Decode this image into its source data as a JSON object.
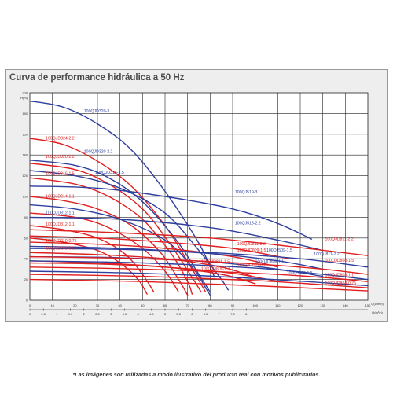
{
  "page": {
    "title": "Curva de performance hidráulica a 50 Hz",
    "disclaimer": "*Las imágenes son utilizadas a modo ilustrativo del producto real con motivos publicitarios."
  },
  "colors": {
    "blue": "#2e3f9e",
    "red": "#e02020",
    "grid": "#222222",
    "bg": "#eeeeee"
  },
  "chart_data": {
    "type": "line",
    "title": "Curva de performance hidráulica a 50 Hz",
    "ylabel": "H(m)",
    "xlabel": "Q(L/min)",
    "x2label": "Q(m³/h)",
    "xlim": [
      0,
      150
    ],
    "ylim": [
      0,
      200
    ],
    "x_ticks": [
      0,
      10,
      20,
      30,
      40,
      50,
      60,
      70,
      80,
      90,
      100,
      110,
      120,
      130,
      140,
      150
    ],
    "x_tick_labels": [
      "0",
      "10",
      "20",
      "30",
      "40",
      "50",
      "60",
      "70",
      "80",
      "90",
      "100",
      "110",
      "120",
      "130",
      "140",
      "150"
    ],
    "x2_ticks": [
      0,
      6,
      12,
      18,
      24,
      30,
      36,
      42,
      48,
      54,
      60,
      66,
      72,
      78,
      84,
      90,
      96
    ],
    "x2_tick_labels": [
      "0",
      "0.5",
      "1",
      "1.5",
      "2",
      "2.5",
      "3",
      "3.5",
      "4",
      "4.5",
      "5",
      "5.5",
      "6",
      "6.5",
      "7",
      "7.5",
      "8"
    ],
    "y_ticks": [
      0,
      20,
      40,
      60,
      80,
      100,
      120,
      140,
      160,
      180,
      200
    ],
    "y_tick_labels": [
      "0",
      "20",
      "40",
      "60",
      "80",
      "100",
      "120",
      "140",
      "160",
      "180",
      "200"
    ],
    "grid": true,
    "series": [
      {
        "name": "100QJD320-3",
        "color": "blue",
        "label_at": [
          24,
          181
        ],
        "points": [
          [
            0,
            192
          ],
          [
            15,
            186
          ],
          [
            30,
            170
          ],
          [
            45,
            145
          ],
          [
            60,
            105
          ],
          [
            75,
            55
          ],
          [
            82,
            22
          ]
        ]
      },
      {
        "name": "100QJD324-2.2",
        "color": "red",
        "label_at": [
          7,
          155
        ],
        "points": [
          [
            0,
            156
          ],
          [
            15,
            150
          ],
          [
            30,
            134
          ],
          [
            45,
            110
          ],
          [
            60,
            72
          ],
          [
            72,
            30
          ],
          [
            78,
            8
          ]
        ]
      },
      {
        "name": "100QJD320-2.2",
        "color": "blue",
        "label_at": [
          24,
          142
        ],
        "points": [
          [
            0,
            135
          ],
          [
            20,
            130
          ],
          [
            35,
            118
          ],
          [
            50,
            95
          ],
          [
            65,
            58
          ],
          [
            75,
            25
          ],
          [
            80,
            8
          ]
        ]
      },
      {
        "name": "100QJD320-2.2",
        "color": "red",
        "label_at": [
          7,
          137
        ],
        "points": [
          [
            0,
            132
          ],
          [
            20,
            126
          ],
          [
            35,
            112
          ],
          [
            50,
            88
          ],
          [
            62,
            55
          ],
          [
            72,
            22
          ],
          [
            76,
            8
          ]
        ]
      },
      {
        "name": "100QJD316-1.5",
        "color": "blue",
        "label_at": [
          29,
          122
        ],
        "points": [
          [
            0,
            125
          ],
          [
            20,
            120
          ],
          [
            40,
            108
          ],
          [
            60,
            84
          ],
          [
            75,
            48
          ],
          [
            85,
            20
          ],
          [
            88,
            10
          ]
        ]
      },
      {
        "name": "100QJD316-1.5",
        "color": "red",
        "label_at": [
          7,
          121
        ],
        "points": [
          [
            0,
            118
          ],
          [
            20,
            112
          ],
          [
            35,
            100
          ],
          [
            50,
            78
          ],
          [
            63,
            44
          ],
          [
            70,
            18
          ],
          [
            72,
            6
          ]
        ]
      },
      {
        "name": "100QJ519-3",
        "color": "blue",
        "label_at": [
          91,
          103
        ],
        "points": [
          [
            0,
            110
          ],
          [
            30,
            108
          ],
          [
            60,
            100
          ],
          [
            90,
            88
          ],
          [
            110,
            74
          ],
          [
            125,
            59
          ]
        ]
      },
      {
        "name": "100QJD214-1.1",
        "color": "red",
        "label_at": [
          7,
          99
        ],
        "points": [
          [
            0,
            100
          ],
          [
            15,
            96
          ],
          [
            30,
            88
          ],
          [
            45,
            72
          ],
          [
            58,
            46
          ],
          [
            66,
            20
          ],
          [
            70,
            5
          ]
        ]
      },
      {
        "name": "100QJD312-1.1",
        "color": "blue",
        "label_at": [
          7,
          83
        ],
        "points": [
          [
            0,
            92
          ],
          [
            20,
            88
          ],
          [
            40,
            78
          ],
          [
            60,
            58
          ],
          [
            72,
            32
          ],
          [
            78,
            12
          ],
          [
            80,
            5
          ]
        ]
      },
      {
        "name": "100QJD312-1.1",
        "color": "red",
        "label_at": [
          7,
          72
        ],
        "points": [
          [
            0,
            84
          ],
          [
            20,
            80
          ],
          [
            35,
            70
          ],
          [
            50,
            50
          ],
          [
            60,
            28
          ],
          [
            66,
            8
          ]
        ]
      },
      {
        "name": "100QJ513-2.2",
        "color": "blue",
        "label_at": [
          91,
          73
        ],
        "points": [
          [
            0,
            80
          ],
          [
            40,
            78
          ],
          [
            80,
            70
          ],
          [
            110,
            58
          ],
          [
            130,
            48
          ]
        ]
      },
      {
        "name": "100QJD210-0.75",
        "color": "red",
        "label_at": [
          7,
          56
        ],
        "points": [
          [
            0,
            72
          ],
          [
            15,
            68
          ],
          [
            30,
            60
          ],
          [
            42,
            45
          ],
          [
            50,
            25
          ],
          [
            55,
            8
          ]
        ]
      },
      {
        "name": "100QJD208-0.55",
        "color": "red",
        "label_at": [
          7,
          49
        ],
        "points": [
          [
            0,
            60
          ],
          [
            15,
            56
          ],
          [
            30,
            48
          ],
          [
            40,
            36
          ],
          [
            48,
            20
          ],
          [
            52,
            6
          ]
        ]
      },
      {
        "name": "100QJD811-2.2",
        "color": "red",
        "label_at": [
          131,
          58
        ],
        "points": [
          [
            0,
            68
          ],
          [
            40,
            65
          ],
          [
            80,
            60
          ],
          [
            115,
            52
          ],
          [
            150,
            43
          ]
        ]
      },
      {
        "name": "100QJD811-2.2",
        "color": "red",
        "label_at": [
          92,
          53
        ],
        "points": [
          [
            0,
            62
          ],
          [
            30,
            60
          ],
          [
            60,
            56
          ],
          [
            90,
            50
          ],
          [
            115,
            40
          ]
        ]
      },
      {
        "name": "100QJD809-1.5",
        "color": "red",
        "label_at": [
          92,
          47
        ],
        "points": [
          [
            0,
            56
          ],
          [
            30,
            54
          ],
          [
            60,
            50
          ],
          [
            90,
            42
          ],
          [
            110,
            32
          ]
        ]
      },
      {
        "name": "100QJ509-1.5",
        "color": "blue",
        "label_at": [
          105,
          47
        ],
        "points": [
          [
            0,
            52
          ],
          [
            40,
            50
          ],
          [
            80,
            45
          ],
          [
            110,
            38
          ],
          [
            130,
            30
          ]
        ]
      },
      {
        "name": "100QJ811-2.2",
        "color": "blue",
        "label_at": [
          126,
          43
        ],
        "points": [
          [
            0,
            50
          ],
          [
            40,
            49
          ],
          [
            80,
            46
          ],
          [
            120,
            40
          ],
          [
            150,
            32
          ]
        ]
      },
      {
        "name": "100QJD811-1.5",
        "color": "red",
        "label_at": [
          76,
          36
        ],
        "points": [
          [
            0,
            46
          ],
          [
            30,
            44
          ],
          [
            60,
            40
          ],
          [
            85,
            32
          ],
          [
            100,
            22
          ]
        ]
      },
      {
        "name": "100QJD808-1.1",
        "color": "blue",
        "label_at": [
          100,
          36
        ],
        "points": [
          [
            0,
            42
          ],
          [
            40,
            41
          ],
          [
            80,
            37
          ],
          [
            110,
            30
          ],
          [
            130,
            23
          ]
        ]
      },
      {
        "name": "100QJD808-1.5",
        "color": "red",
        "label_at": [
          131,
          37
        ],
        "points": [
          [
            0,
            42
          ],
          [
            50,
            40
          ],
          [
            100,
            35
          ],
          [
            130,
            30
          ],
          [
            150,
            25
          ]
        ]
      },
      {
        "name": "100QJD805-0.75",
        "color": "red",
        "label_at": [
          92,
          33
        ],
        "points": [
          [
            0,
            36
          ],
          [
            30,
            35
          ],
          [
            60,
            32
          ],
          [
            90,
            26
          ],
          [
            110,
            18
          ]
        ]
      },
      {
        "name": "100QJD808-1.1",
        "color": "red",
        "label_at": [
          76,
          29
        ],
        "points": [
          [
            0,
            38
          ],
          [
            30,
            36
          ],
          [
            60,
            32
          ],
          [
            85,
            25
          ],
          [
            100,
            16
          ]
        ]
      },
      {
        "name": "100QJ808-1.5",
        "color": "blue",
        "label_at": [
          114,
          25
        ],
        "points": [
          [
            0,
            38
          ],
          [
            50,
            36
          ],
          [
            100,
            31
          ],
          [
            130,
            25
          ],
          [
            150,
            20
          ]
        ]
      },
      {
        "name": "100QJD808-1.1",
        "color": "red",
        "label_at": [
          131,
          23
        ],
        "points": [
          [
            0,
            32
          ],
          [
            50,
            30
          ],
          [
            100,
            26
          ],
          [
            130,
            22
          ],
          [
            150,
            18
          ]
        ]
      },
      {
        "name": "100QJD804-0.75",
        "color": "red",
        "label_at": [
          131,
          15
        ],
        "points": [
          [
            0,
            25
          ],
          [
            50,
            23
          ],
          [
            100,
            19
          ],
          [
            130,
            15
          ],
          [
            150,
            12
          ]
        ]
      },
      {
        "name": "",
        "color": "blue",
        "label_at": null,
        "points": [
          [
            0,
            28
          ],
          [
            50,
            26
          ],
          [
            100,
            21
          ],
          [
            150,
            14
          ]
        ]
      },
      {
        "name": "",
        "color": "red",
        "label_at": null,
        "points": [
          [
            0,
            20
          ],
          [
            50,
            18
          ],
          [
            100,
            14
          ],
          [
            150,
            9
          ]
        ]
      }
    ]
  }
}
